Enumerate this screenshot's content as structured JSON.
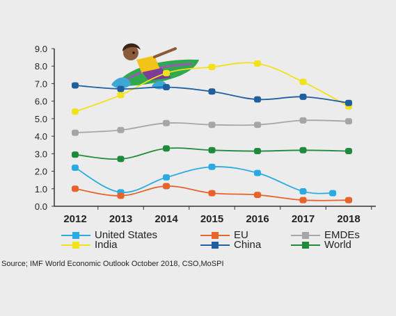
{
  "chart_data": {
    "type": "line",
    "title": "",
    "xlabel": "",
    "ylabel": "",
    "x": [
      "2012",
      "2013",
      "2014",
      "2015",
      "2016",
      "2017",
      "2018"
    ],
    "ylim": [
      0,
      9
    ],
    "yticks": [
      "0.0",
      "1.0",
      "2.0",
      "3.0",
      "4.0",
      "5.0",
      "6.0",
      "7.0",
      "8.0",
      "9.0"
    ],
    "grid": false,
    "legend_position": "bottom",
    "series": [
      {
        "name": "United States",
        "color": "#29abe2",
        "values": [
          2.2,
          0.8,
          1.65,
          2.25,
          1.9,
          0.85,
          0.75
        ],
        "last_x_offset": -0.35
      },
      {
        "name": "EU",
        "color": "#e8632a",
        "values": [
          1.0,
          0.6,
          1.15,
          0.75,
          0.65,
          0.35,
          0.35
        ]
      },
      {
        "name": "EMDEs",
        "color": "#a6a6a6",
        "values": [
          4.2,
          4.35,
          4.75,
          4.65,
          4.65,
          4.9,
          4.85
        ]
      },
      {
        "name": "India",
        "color": "#f2e21c",
        "values": [
          5.4,
          6.35,
          7.6,
          7.95,
          8.15,
          7.1,
          5.7
        ]
      },
      {
        "name": "China",
        "color": "#1f5fa0",
        "values": [
          6.9,
          6.7,
          6.8,
          6.55,
          6.1,
          6.25,
          5.9
        ]
      },
      {
        "name": "World",
        "color": "#1f8a3c",
        "values": [
          2.95,
          2.7,
          3.3,
          3.2,
          3.15,
          3.2,
          3.15
        ]
      }
    ]
  },
  "source": "Source; IMF World Economic Outlook October 2018, CSO,MoSPI"
}
